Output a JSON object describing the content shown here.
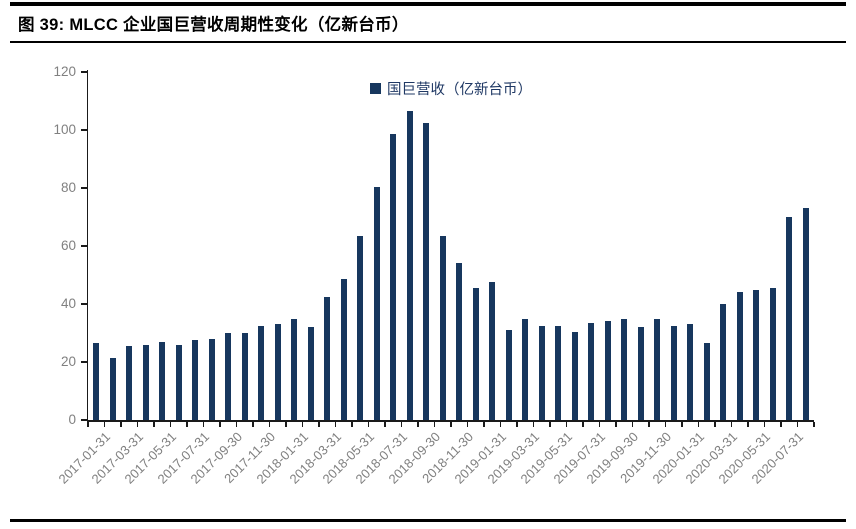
{
  "figure": {
    "title": "图 39:  MLCC 企业国巨营收周期性变化（亿新台币）"
  },
  "legend": {
    "label": "国巨营收（亿新台币）",
    "marker": "square",
    "marker_color": "#17375e"
  },
  "colors": {
    "bar": "#17375e",
    "axis": "#1a1a1a",
    "tick_label_gray": "#7f7f7f",
    "legend_text": "#1f3864",
    "rule_black": "#000000",
    "background": "#ffffff"
  },
  "chart_data": {
    "type": "bar",
    "title": "图 39:  MLCC 企业国巨营收周期性变化（亿新台币）",
    "series_name": "国巨营收（亿新台币）",
    "values": [
      26.5,
      21.5,
      25.5,
      26,
      27,
      26,
      27.5,
      28,
      30,
      30,
      32.5,
      33,
      35,
      32,
      42.5,
      48.5,
      63.5,
      80.5,
      98.5,
      106.5,
      102.5,
      63.5,
      54,
      45.5,
      47.5,
      31,
      35,
      32.5,
      32.5,
      30.5,
      33.5,
      34,
      35,
      32,
      35,
      32.5,
      33,
      26.5,
      40,
      44,
      45,
      45.5,
      70,
      73
    ],
    "bar_count": 44,
    "xtick_labels": [
      "2017-01-31",
      "2017-03-31",
      "2017-05-31",
      "2017-07-31",
      "2017-09-30",
      "2017-11-30",
      "2018-01-31",
      "2018-03-31",
      "2018-05-31",
      "2018-07-31",
      "2018-09-30",
      "2018-11-30",
      "2019-01-31",
      "2019-03-31",
      "2019-05-31",
      "2019-07-31",
      "2019-09-30",
      "2019-11-30",
      "2020-01-31",
      "2020-03-31",
      "2020-05-31",
      "2020-07-31"
    ],
    "label_every_n_bars": 2,
    "yticks": [
      0,
      20,
      40,
      60,
      80,
      100,
      120
    ],
    "ylim": [
      0,
      120
    ],
    "xlabel": "",
    "ylabel": "",
    "grid": false,
    "legend_position": "top-center",
    "bar_color": "#17375e"
  }
}
